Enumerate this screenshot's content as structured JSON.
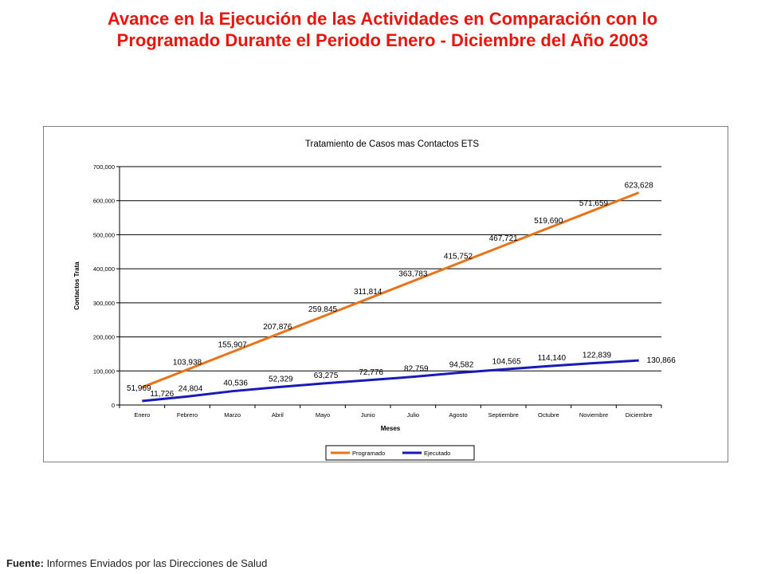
{
  "page": {
    "title_line1": "Avance en la Ejecución de las Actividades en Comparación con lo",
    "title_line2": "Programado Durante el Periodo Enero - Diciembre del Año 2003",
    "footer_label": "Fuente:",
    "footer_text": " Informes Enviados por las Direcciones de Salud"
  },
  "chart_data": {
    "type": "line",
    "title": "Tratamiento de Casos mas Contactos ETS",
    "xlabel": "Meses",
    "ylabel": "Contactos Trata",
    "ylim": [
      0,
      700000
    ],
    "yticks": [
      0,
      100000,
      200000,
      300000,
      400000,
      500000,
      600000,
      700000
    ],
    "ytick_labels": [
      "0",
      "100,000",
      "200,000",
      "300,000",
      "400,000",
      "500,000",
      "600,000",
      "700,000"
    ],
    "grid": true,
    "legend_position": "bottom",
    "categories": [
      "Enero",
      "Febrero",
      "Marzo",
      "Abril",
      "Mayo",
      "Junio",
      "Julio",
      "Agosto",
      "Septiembre",
      "Octubre",
      "Noviembre",
      "Diciembre"
    ],
    "series": [
      {
        "name": "Programado",
        "color": "#e8731a",
        "values": [
          51969,
          103938,
          155907,
          207876,
          259845,
          311814,
          363783,
          415752,
          467721,
          519690,
          571659,
          623628
        ],
        "labels": [
          "51,969",
          "103,938",
          "155,907",
          "207,876",
          "259,845",
          "311,814",
          "363,783",
          "415,752",
          "467,721",
          "519,690",
          "571,659",
          "623,628"
        ]
      },
      {
        "name": "Ejecutado",
        "color": "#1a1ab8",
        "values": [
          11726,
          24804,
          40536,
          52329,
          63275,
          72776,
          82759,
          94582,
          104565,
          114140,
          122839,
          130866
        ],
        "labels": [
          "11,726",
          "24,804",
          "40,536",
          "52,329",
          "63,275",
          "72,776",
          "82,759",
          "94,582",
          "104,565",
          "114,140",
          "122,839",
          "130,866"
        ]
      }
    ]
  }
}
